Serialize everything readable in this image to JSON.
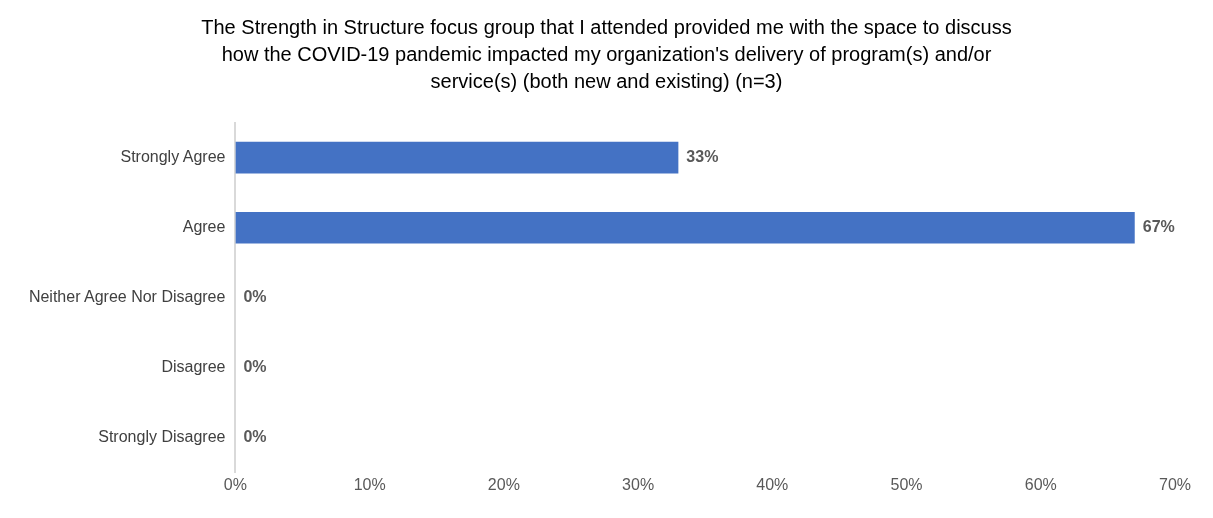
{
  "chart_data": {
    "type": "bar",
    "orientation": "horizontal",
    "title": "The Strength in Structure focus group that I attended provided me with the space to discuss how the COVID-19 pandemic impacted my organization's delivery of program(s) and/or service(s) (both new and existing) (n=3)",
    "categories": [
      "Strongly Agree",
      "Agree",
      "Neither Agree Nor Disagree",
      "Disagree",
      "Strongly Disagree"
    ],
    "values": [
      33,
      67,
      0,
      0,
      0
    ],
    "value_labels": [
      "33%",
      "67%",
      "0%",
      "0%",
      "0%"
    ],
    "color": "#4472c4",
    "xlim": [
      0,
      70
    ],
    "xticks": [
      {
        "value": 0,
        "label": "0%"
      },
      {
        "value": 10,
        "label": "10%"
      },
      {
        "value": 20,
        "label": "20%"
      },
      {
        "value": 30,
        "label": "30%"
      },
      {
        "value": 40,
        "label": "40%"
      },
      {
        "value": 50,
        "label": "50%"
      },
      {
        "value": 60,
        "label": "60%"
      },
      {
        "value": 70,
        "label": "70%"
      }
    ],
    "grid": false,
    "legend": false
  }
}
